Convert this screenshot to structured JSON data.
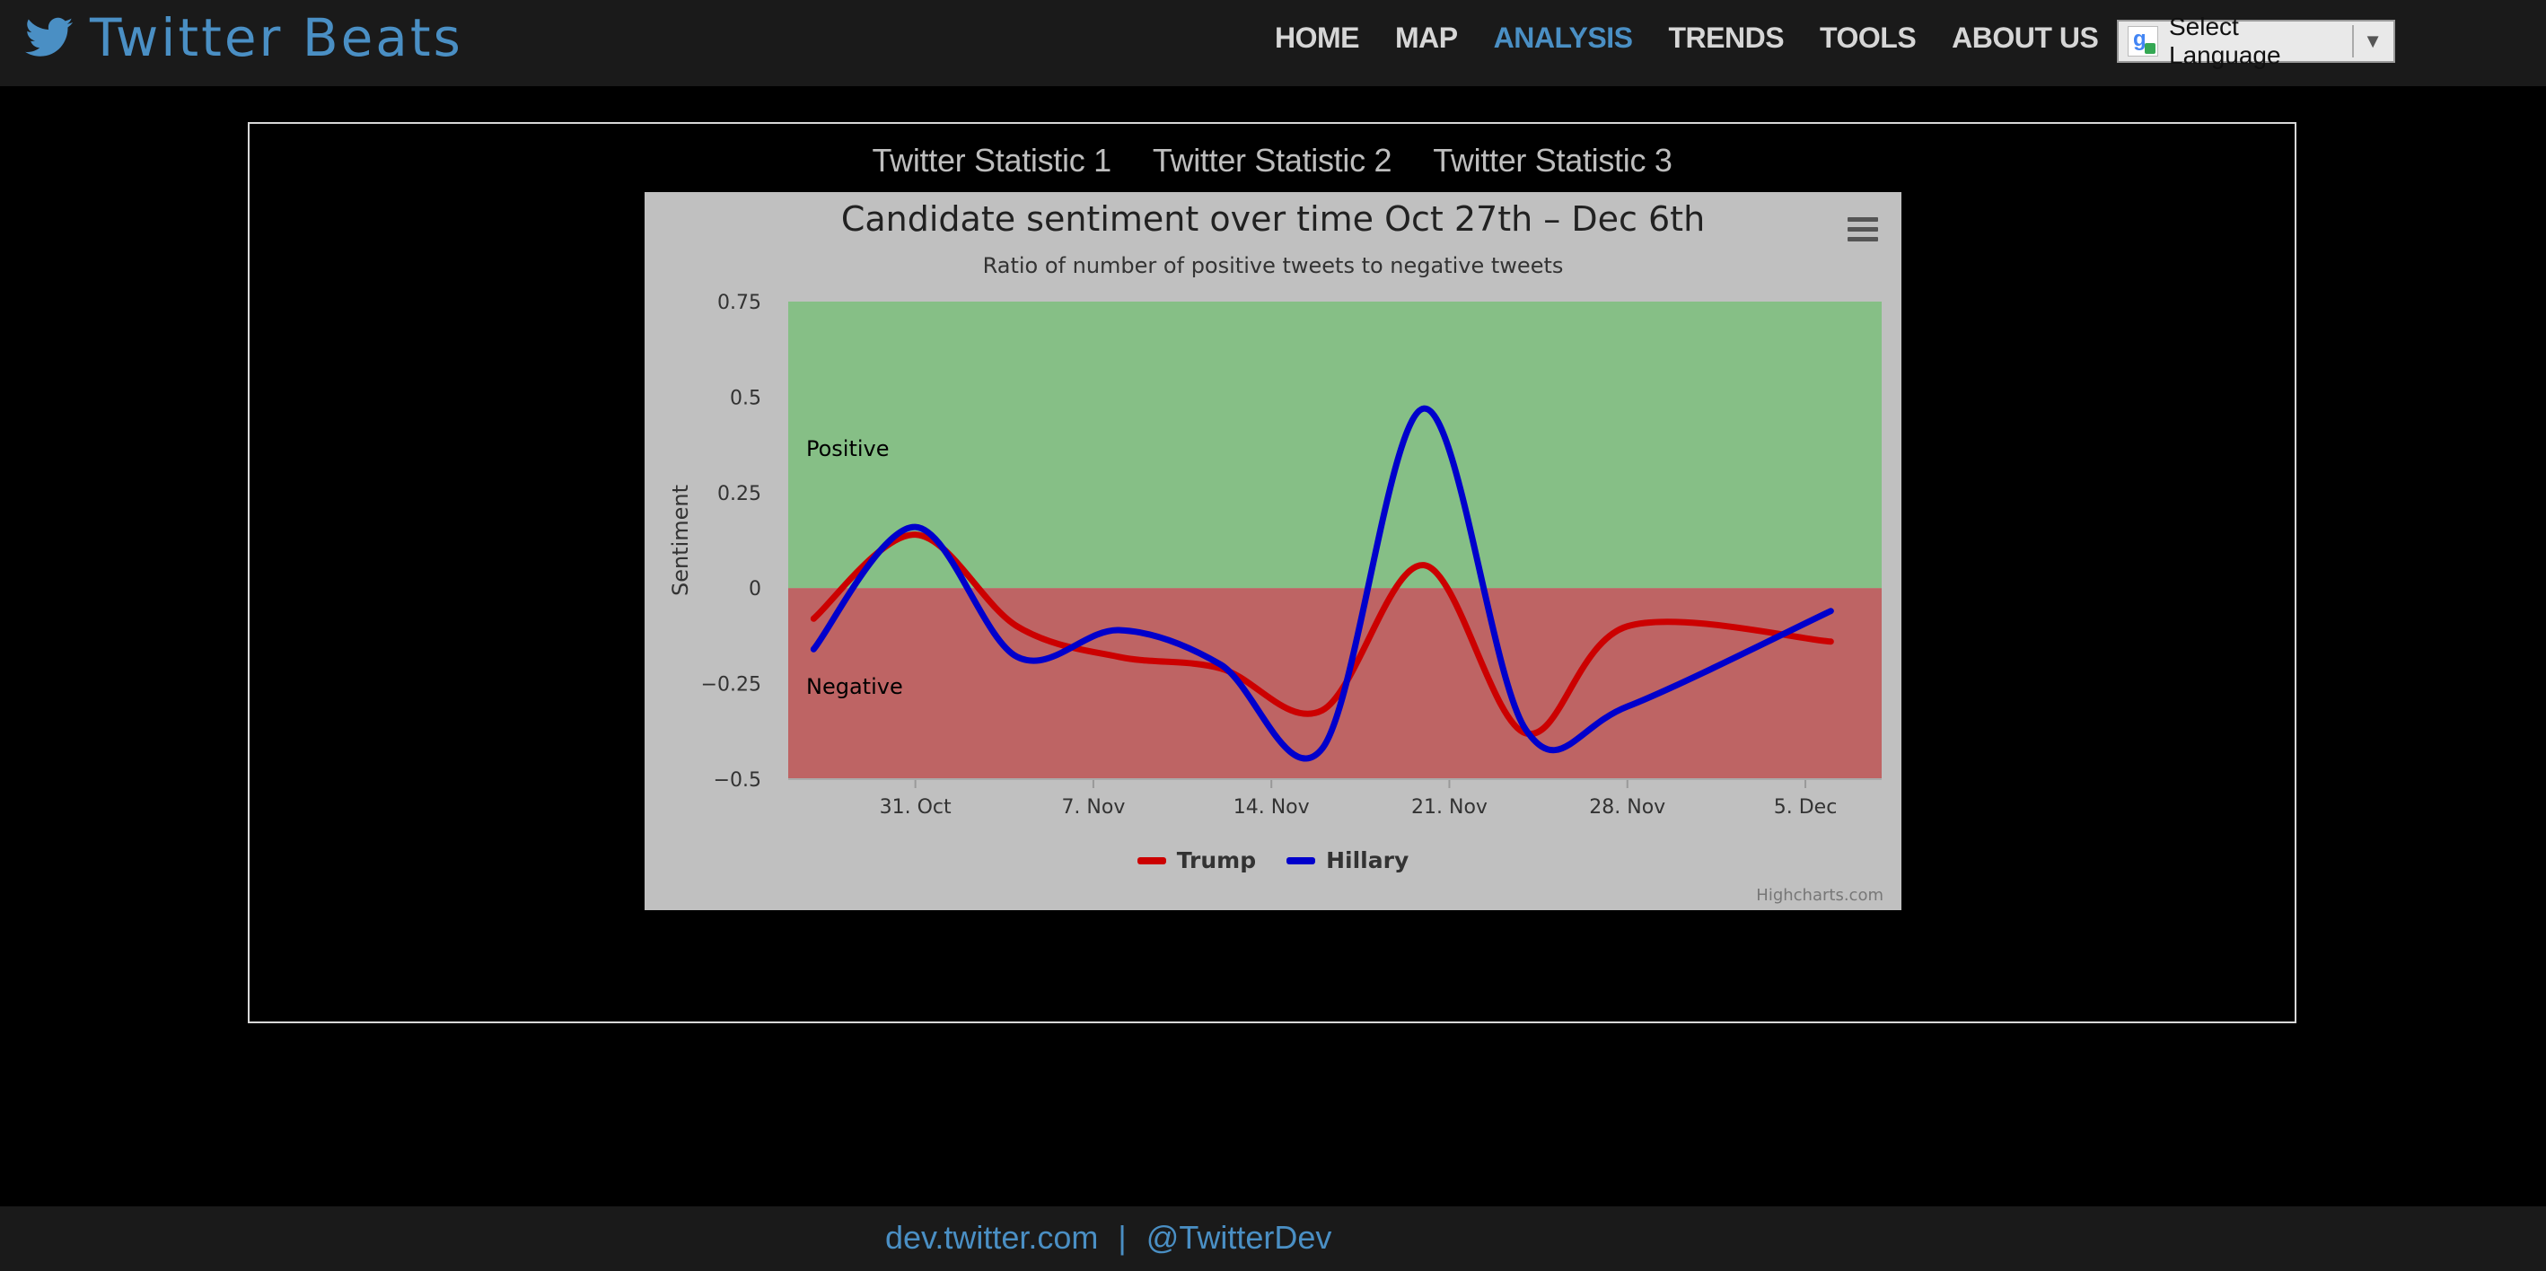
{
  "brand": {
    "name": "Twitter Beats",
    "icon": "twitter-bird-icon"
  },
  "nav": {
    "items": [
      {
        "label": "HOME",
        "active": false
      },
      {
        "label": "MAP",
        "active": false
      },
      {
        "label": "ANALYSIS",
        "active": true
      },
      {
        "label": "TRENDS",
        "active": false
      },
      {
        "label": "TOOLS",
        "active": false
      },
      {
        "label": "ABOUT US",
        "active": false
      }
    ],
    "language": {
      "label": "Select Language",
      "arrow": "▼",
      "icon": "google-translate-icon"
    }
  },
  "tabs": [
    "Twitter Statistic 1",
    "Twitter Statistic 2",
    "Twitter Statistic 3"
  ],
  "colors": {
    "accent": "#4a8fc4",
    "positive_band": "#86bf86",
    "negative_band": "#be6464",
    "trump": "#cc0000",
    "hillary": "#0000cc"
  },
  "chart": {
    "menu_icon": "hamburger-menu-icon",
    "credits": "Highcharts.com"
  },
  "chart_data": {
    "type": "line",
    "title": "Candidate sentiment over time Oct 27th – Dec 6th",
    "subtitle": "Ratio of number of positive tweets to negative tweets",
    "xlabel": "",
    "ylabel": "Sentiment",
    "x_range": [
      "2016-10-26",
      "2016-12-08"
    ],
    "ylim": [
      -0.5,
      0.75
    ],
    "y_ticks": [
      0.75,
      0.5,
      0.25,
      0,
      -0.25,
      -0.5
    ],
    "y_tick_labels": [
      "0.75",
      "0.5",
      "0.25",
      "0",
      "−0.25",
      "−0.5"
    ],
    "x_ticks": [
      "2016-10-31",
      "2016-11-07",
      "2016-11-14",
      "2016-11-21",
      "2016-11-28",
      "2016-12-05"
    ],
    "x_tick_labels": [
      "31. Oct",
      "7. Nov",
      "14. Nov",
      "21. Nov",
      "28. Nov",
      "5. Dec"
    ],
    "plot_bands": [
      {
        "from": 0,
        "to": 0.75,
        "label": "Positive"
      },
      {
        "from": -0.5,
        "to": 0,
        "label": "Negative"
      }
    ],
    "grid": false,
    "legend": "bottom-center",
    "series": [
      {
        "name": "Trump",
        "x": [
          "2016-10-27",
          "2016-10-31",
          "2016-11-04",
          "2016-11-08",
          "2016-11-12",
          "2016-11-16",
          "2016-11-20",
          "2016-11-24",
          "2016-11-28",
          "2016-12-06"
        ],
        "values": [
          -0.08,
          0.14,
          -0.1,
          -0.18,
          -0.21,
          -0.32,
          0.06,
          -0.38,
          -0.1,
          -0.14
        ]
      },
      {
        "name": "Hillary",
        "x": [
          "2016-10-27",
          "2016-10-31",
          "2016-11-04",
          "2016-11-08",
          "2016-11-12",
          "2016-11-16",
          "2016-11-20",
          "2016-11-24",
          "2016-11-28",
          "2016-12-06"
        ],
        "values": [
          -0.16,
          0.16,
          -0.18,
          -0.11,
          -0.2,
          -0.42,
          0.47,
          -0.37,
          -0.31,
          -0.06
        ]
      }
    ]
  },
  "footer": {
    "link1": "dev.twitter.com",
    "separator": "|",
    "link2": "@TwitterDev"
  }
}
